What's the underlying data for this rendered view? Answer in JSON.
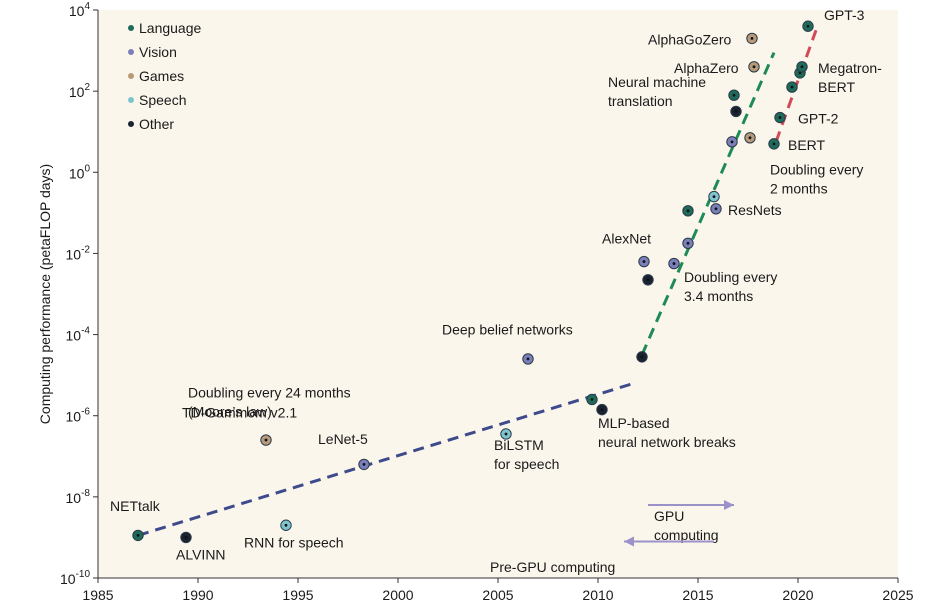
{
  "chart_data": {
    "type": "scatter",
    "title": "",
    "xlabel": "",
    "ylabel": "Computing performance (petaFLOP days)",
    "xlim": [
      1985,
      2025
    ],
    "ylim_log10": [
      -10,
      4
    ],
    "y_scale": "log",
    "grid": false,
    "legend_position": "top-left",
    "x_ticks": [
      {
        "label": "1985",
        "value": 1985
      },
      {
        "label": "1990",
        "value": 1990
      },
      {
        "label": "1995",
        "value": 1995
      },
      {
        "label": "2000",
        "value": 2000
      },
      {
        "label": "2005",
        "value": 2005
      },
      {
        "label": "2010",
        "value": 2010
      },
      {
        "label": "2015",
        "value": 2015
      },
      {
        "label": "2020",
        "value": 2020
      },
      {
        "label": "2025",
        "value": 2025
      }
    ],
    "y_ticks": [
      {
        "base": "10",
        "exp": "4",
        "value": 4
      },
      {
        "base": "10",
        "exp": "2",
        "value": 2
      },
      {
        "base": "10",
        "exp": "0",
        "value": 0
      },
      {
        "base": "10",
        "exp": "-2",
        "value": -2
      },
      {
        "base": "10",
        "exp": "-4",
        "value": -4
      },
      {
        "base": "10",
        "exp": "-6",
        "value": -6
      },
      {
        "base": "10",
        "exp": "-8",
        "value": -8
      },
      {
        "base": "10",
        "exp": "-10",
        "value": -10
      }
    ],
    "categories": [
      {
        "key": "language",
        "name": "Language",
        "color": "#1f6b5a"
      },
      {
        "key": "vision",
        "name": "Vision",
        "color": "#7b7fb8"
      },
      {
        "key": "games",
        "name": "Games",
        "color": "#b89a78"
      },
      {
        "key": "speech",
        "name": "Speech",
        "color": "#7fc4cc"
      },
      {
        "key": "other",
        "name": "Other",
        "color": "#1b2230"
      }
    ],
    "points": [
      {
        "x": 1987.0,
        "y": -8.95,
        "cat": "language"
      },
      {
        "x": 1989.4,
        "y": -9.0,
        "cat": "other"
      },
      {
        "x": 1993.4,
        "y": -6.6,
        "cat": "games"
      },
      {
        "x": 1994.4,
        "y": -8.7,
        "cat": "speech"
      },
      {
        "x": 1998.3,
        "y": -7.2,
        "cat": "vision"
      },
      {
        "x": 2005.4,
        "y": -6.45,
        "cat": "speech"
      },
      {
        "x": 2006.5,
        "y": -4.6,
        "cat": "vision"
      },
      {
        "x": 2009.7,
        "y": -5.6,
        "cat": "language"
      },
      {
        "x": 2010.2,
        "y": -5.85,
        "cat": "other"
      },
      {
        "x": 2012.2,
        "y": -4.55,
        "cat": "other"
      },
      {
        "x": 2012.3,
        "y": -2.2,
        "cat": "vision"
      },
      {
        "x": 2012.5,
        "y": -2.65,
        "cat": "other"
      },
      {
        "x": 2013.8,
        "y": -2.25,
        "cat": "vision"
      },
      {
        "x": 2014.5,
        "y": -1.75,
        "cat": "vision"
      },
      {
        "x": 2014.5,
        "y": -0.95,
        "cat": "language"
      },
      {
        "x": 2015.8,
        "y": -0.6,
        "cat": "speech"
      },
      {
        "x": 2015.9,
        "y": -0.9,
        "cat": "vision"
      },
      {
        "x": 2016.7,
        "y": 0.75,
        "cat": "vision"
      },
      {
        "x": 2016.8,
        "y": 1.9,
        "cat": "language"
      },
      {
        "x": 2016.9,
        "y": 1.5,
        "cat": "other"
      },
      {
        "x": 2017.6,
        "y": 0.85,
        "cat": "games"
      },
      {
        "x": 2017.7,
        "y": 3.3,
        "cat": "games"
      },
      {
        "x": 2017.8,
        "y": 2.6,
        "cat": "games"
      },
      {
        "x": 2018.8,
        "y": 0.7,
        "cat": "language"
      },
      {
        "x": 2019.1,
        "y": 1.35,
        "cat": "language"
      },
      {
        "x": 2019.7,
        "y": 2.1,
        "cat": "language"
      },
      {
        "x": 2020.1,
        "y": 2.45,
        "cat": "language"
      },
      {
        "x": 2020.2,
        "y": 2.6,
        "cat": "language"
      },
      {
        "x": 2020.5,
        "y": 3.6,
        "cat": "language"
      }
    ],
    "trend_lines": [
      {
        "label_lines": [
          "Doubling every 24 months",
          "(Moore’s law)"
        ],
        "color": "#3d4a8c",
        "x1": 1987.0,
        "y1": -8.95,
        "x2": 2011.8,
        "y2": -5.2,
        "label_x": 1989.5,
        "label_y": -5.55
      },
      {
        "label_lines": [
          "Doubling every",
          "3.4 months"
        ],
        "color": "#1e8a57",
        "x1": 2012.2,
        "y1": -4.5,
        "x2": 2018.8,
        "y2": 2.95,
        "label_x": 2014.3,
        "label_y": -2.7
      },
      {
        "label_lines": [
          "Doubling every",
          "2 months"
        ],
        "color": "#d14b57",
        "x1": 2018.9,
        "y1": 0.75,
        "x2": 2020.9,
        "y2": 3.5,
        "label_x": 2018.6,
        "label_y": -0.05
      }
    ],
    "annotations": [
      {
        "lines": [
          "NETtalk"
        ],
        "x": 1985.6,
        "y": -8.35
      },
      {
        "lines": [
          "ALVINN"
        ],
        "x": 1988.9,
        "y": -9.55
      },
      {
        "lines": [
          "TD-Gammom v2.1"
        ],
        "x": 1989.2,
        "y": -6.05
      },
      {
        "lines": [
          "RNN for speech"
        ],
        "x": 1992.3,
        "y": -9.25
      },
      {
        "lines": [
          "LeNet-5"
        ],
        "x": 1996.0,
        "y": -6.7
      },
      {
        "lines": [
          "BiLSTM",
          "for speech"
        ],
        "x": 2004.8,
        "y": -6.85
      },
      {
        "lines": [
          "Deep belief networks"
        ],
        "x": 2002.2,
        "y": -4.0
      },
      {
        "lines": [
          "MLP-based",
          "neural network breaks"
        ],
        "x": 2010.0,
        "y": -6.3
      },
      {
        "lines": [
          "AlexNet"
        ],
        "x": 2010.2,
        "y": -1.75
      },
      {
        "lines": [
          "ResNets"
        ],
        "x": 2016.5,
        "y": -1.05
      },
      {
        "lines": [
          "Neural machine",
          "translation"
        ],
        "x": 2010.5,
        "y": 2.1
      },
      {
        "lines": [
          "AlphaZero"
        ],
        "x": 2013.8,
        "y": 2.45
      },
      {
        "lines": [
          "AlphaGoZero"
        ],
        "x": 2012.5,
        "y": 3.15
      },
      {
        "lines": [
          "GPT-3"
        ],
        "x": 2021.3,
        "y": 3.75
      },
      {
        "lines": [
          "Megatron-",
          "BERT"
        ],
        "x": 2021.0,
        "y": 2.45
      },
      {
        "lines": [
          "GPT-2"
        ],
        "x": 2020.0,
        "y": 1.2
      },
      {
        "lines": [
          "BERT"
        ],
        "x": 2019.5,
        "y": 0.55
      }
    ],
    "arrows": [
      {
        "label_lines": [
          "GPU",
          "computing"
        ],
        "x1": 2012.5,
        "x2": 2016.8,
        "y": -8.2,
        "label_x": 2012.8,
        "label_y": -8.6,
        "color": "#9a92c8"
      },
      {
        "label_lines": [
          "Pre-GPU computing"
        ],
        "x1": 2015.8,
        "x2": 2011.3,
        "y": -9.1,
        "label_x": 2004.6,
        "label_y": -9.85,
        "color": "#9a92c8"
      }
    ]
  }
}
